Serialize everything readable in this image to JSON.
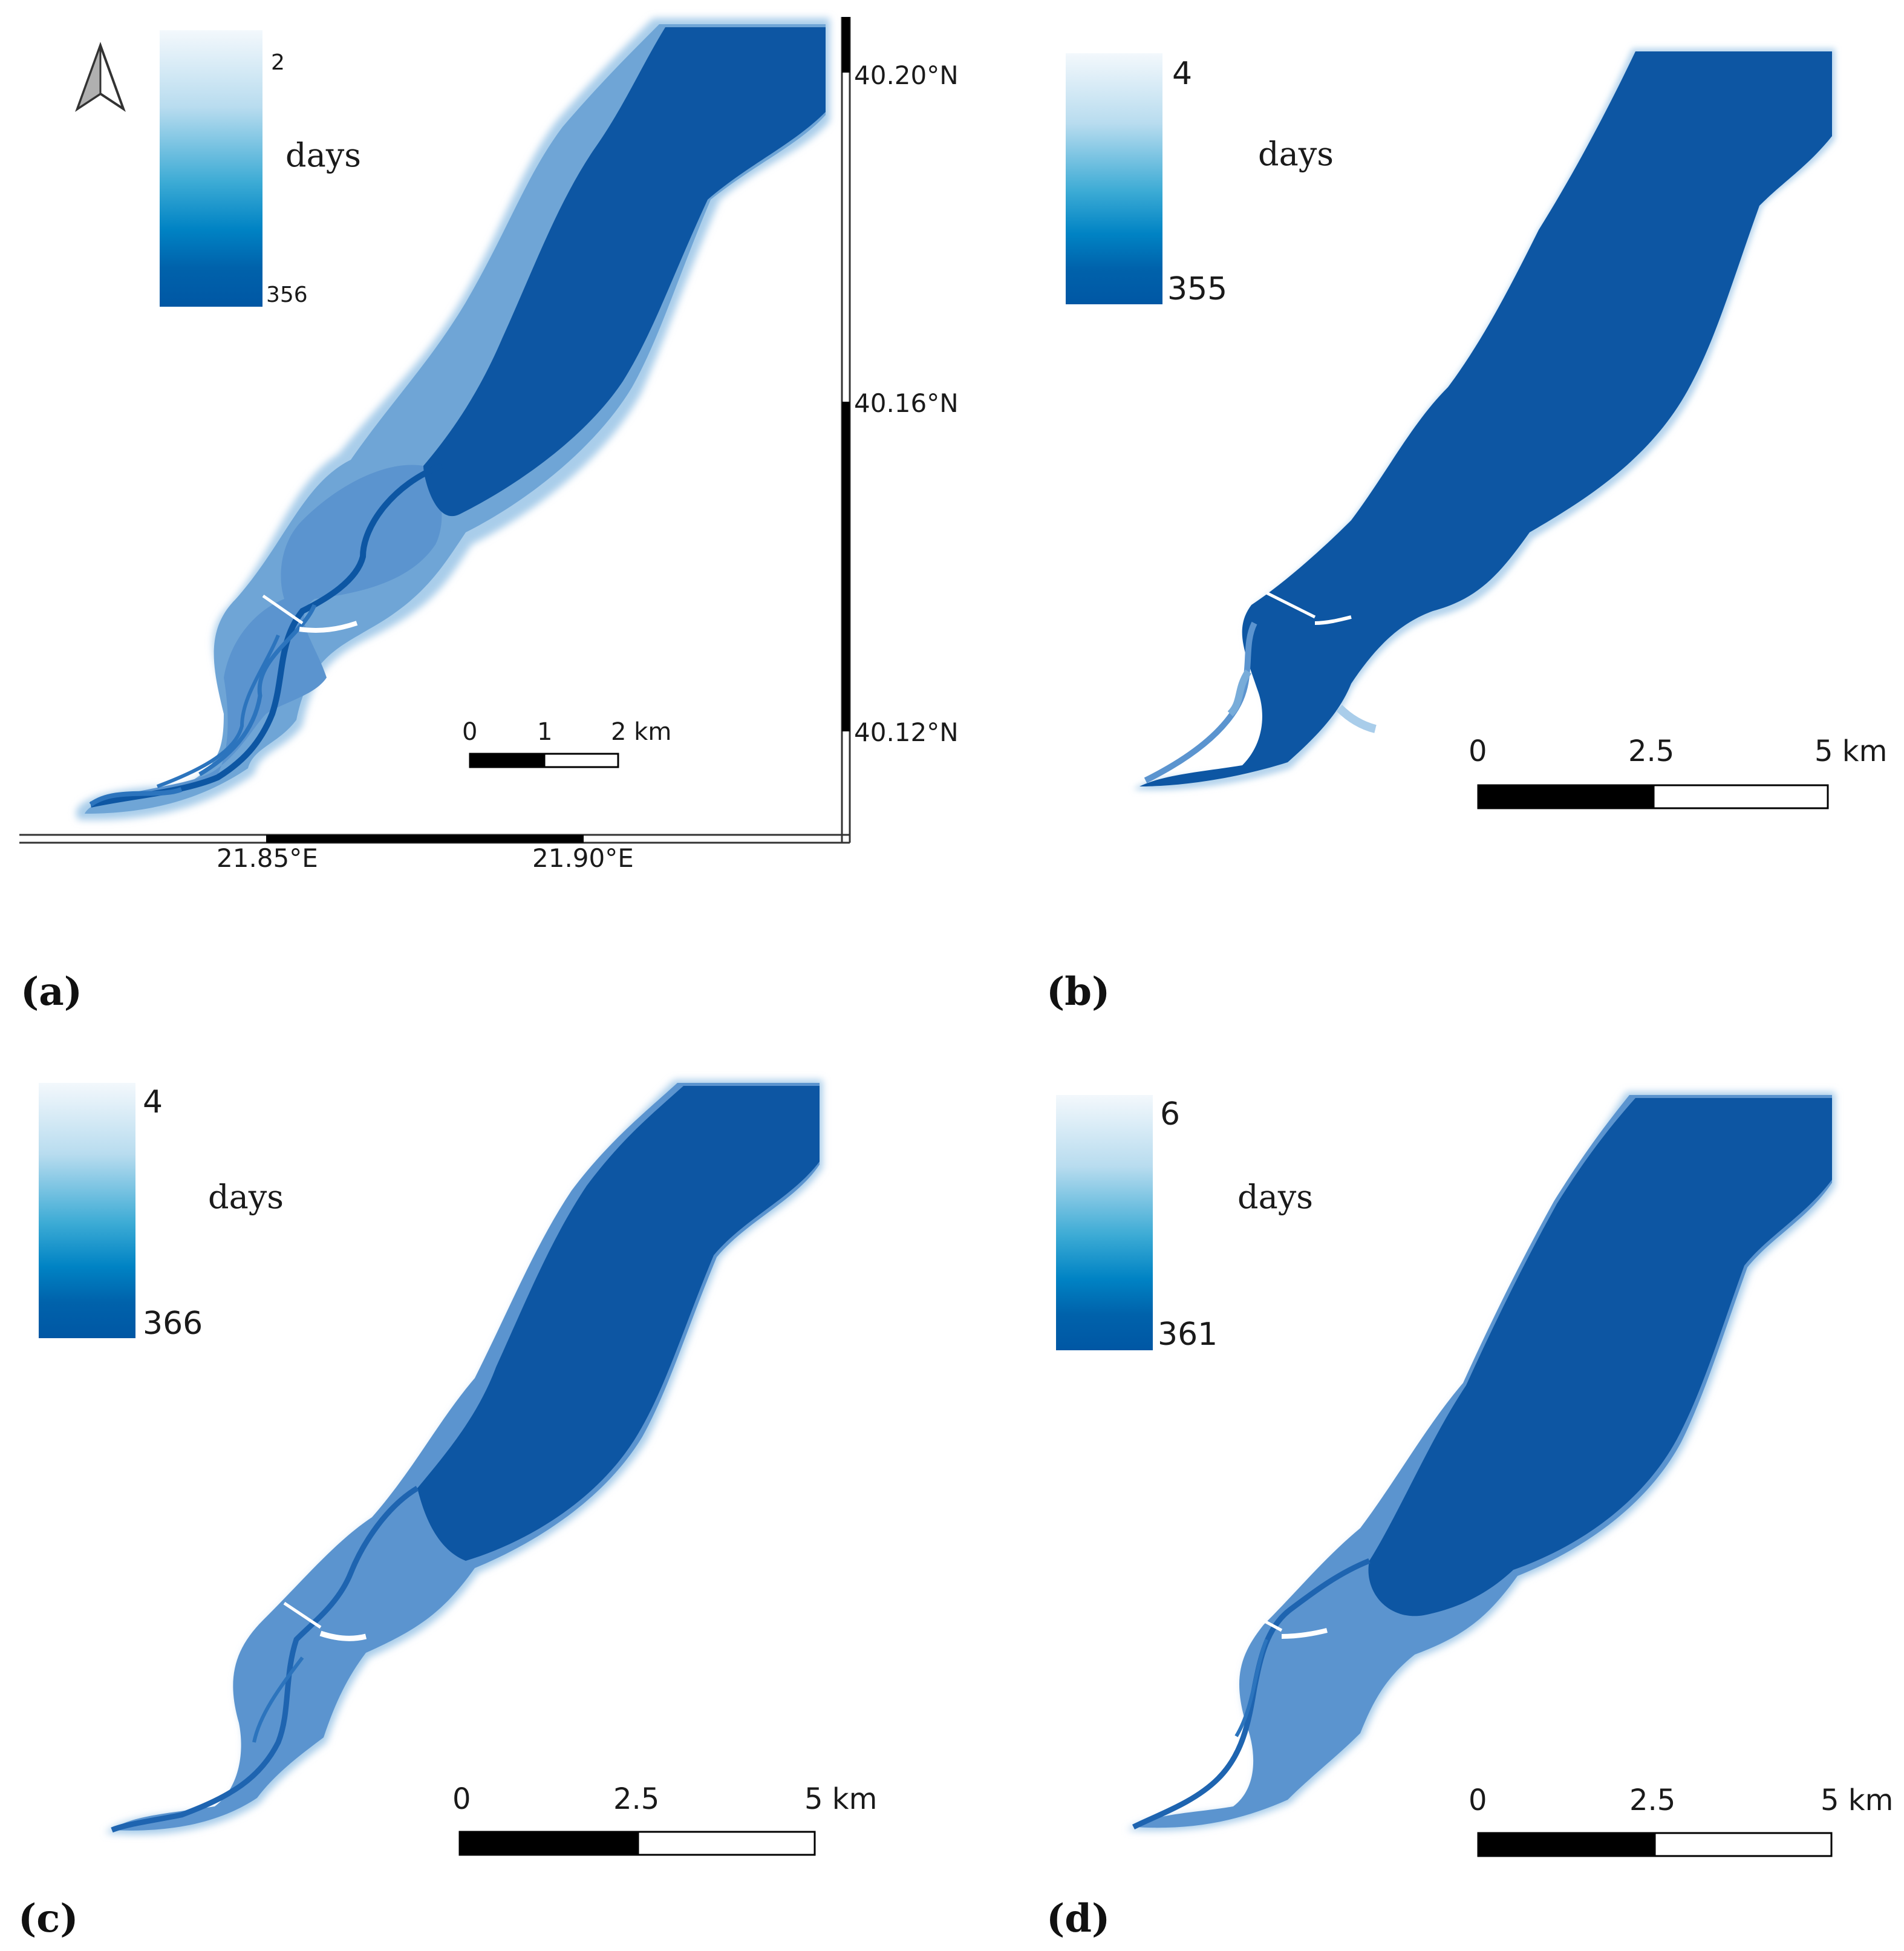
{
  "figure": {
    "panels": [
      {
        "id": "a",
        "label": "(a)",
        "legend": {
          "max_label": "2",
          "min_label": "356",
          "unit": "days"
        },
        "scalebar": {
          "ticks": [
            "0",
            "1",
            "2 km"
          ]
        },
        "graticule": {
          "lat": [
            "40.20°N",
            "40.16°N",
            "40.12°N"
          ],
          "lon": [
            "21.85°E",
            "21.90°E"
          ]
        }
      },
      {
        "id": "b",
        "label": "(b)",
        "legend": {
          "max_label": "4",
          "min_label": "355",
          "unit": "days"
        },
        "scalebar": {
          "ticks": [
            "0",
            "2.5",
            "5 km"
          ]
        }
      },
      {
        "id": "c",
        "label": "(c)",
        "legend": {
          "max_label": "4",
          "min_label": "366",
          "unit": "days"
        },
        "scalebar": {
          "ticks": [
            "0",
            "2.5",
            "5 km"
          ]
        }
      },
      {
        "id": "d",
        "label": "(d)",
        "legend": {
          "max_label": "6",
          "min_label": "361",
          "unit": "days"
        },
        "scalebar": {
          "ticks": [
            "0",
            "2.5",
            "5 km"
          ]
        }
      }
    ],
    "colors": {
      "water_deep": "#0d56a3",
      "water_mid": "#3e86c7",
      "water_light": "#78acd9",
      "water_edge": "#b4d2ec"
    },
    "north_arrow_icon": "north-arrow-icon"
  }
}
